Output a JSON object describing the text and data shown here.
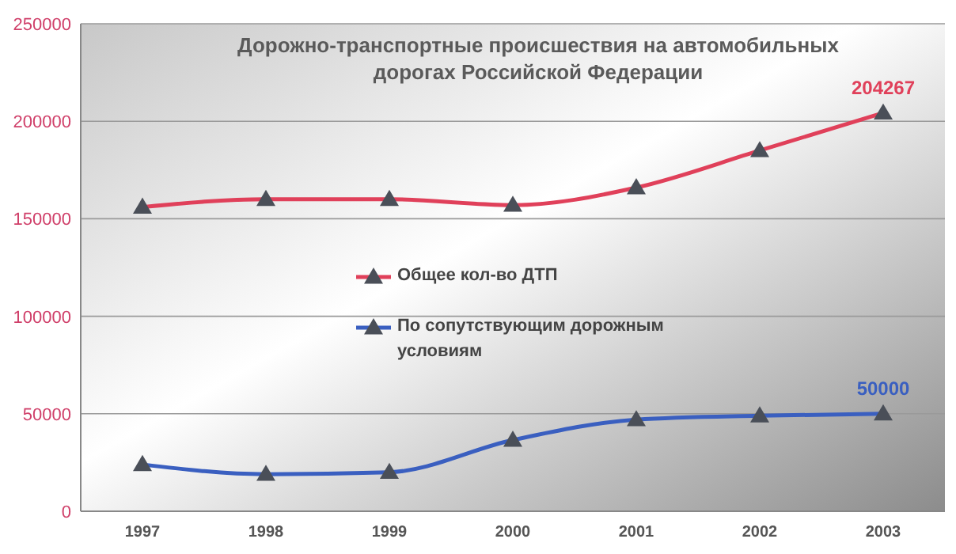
{
  "chart_data": {
    "type": "line",
    "title": "Дорожно-транспортные происшествия на автомобильных дорогах Российской Федерации",
    "categories": [
      "1997",
      "1998",
      "1999",
      "2000",
      "2001",
      "2002",
      "2003"
    ],
    "series": [
      {
        "name": "Общее кол-во ДТП",
        "color": "#e0405a",
        "values": [
          156000,
          160000,
          160000,
          157000,
          166000,
          185000,
          204267
        ],
        "value_labels": [
          null,
          null,
          null,
          null,
          null,
          null,
          "204267"
        ]
      },
      {
        "name": "По сопутствующим дорожным условиям",
        "color": "#3a5fc0",
        "values": [
          24000,
          19000,
          20000,
          36500,
          47000,
          49000,
          50000
        ],
        "value_labels": [
          null,
          null,
          null,
          null,
          null,
          null,
          "50000"
        ]
      }
    ],
    "ylim": [
      0,
      250000
    ],
    "yticks": [
      0,
      50000,
      100000,
      150000,
      200000,
      250000
    ],
    "grid": "y",
    "legend": "center",
    "marker": "triangle",
    "line_style": "solid"
  }
}
